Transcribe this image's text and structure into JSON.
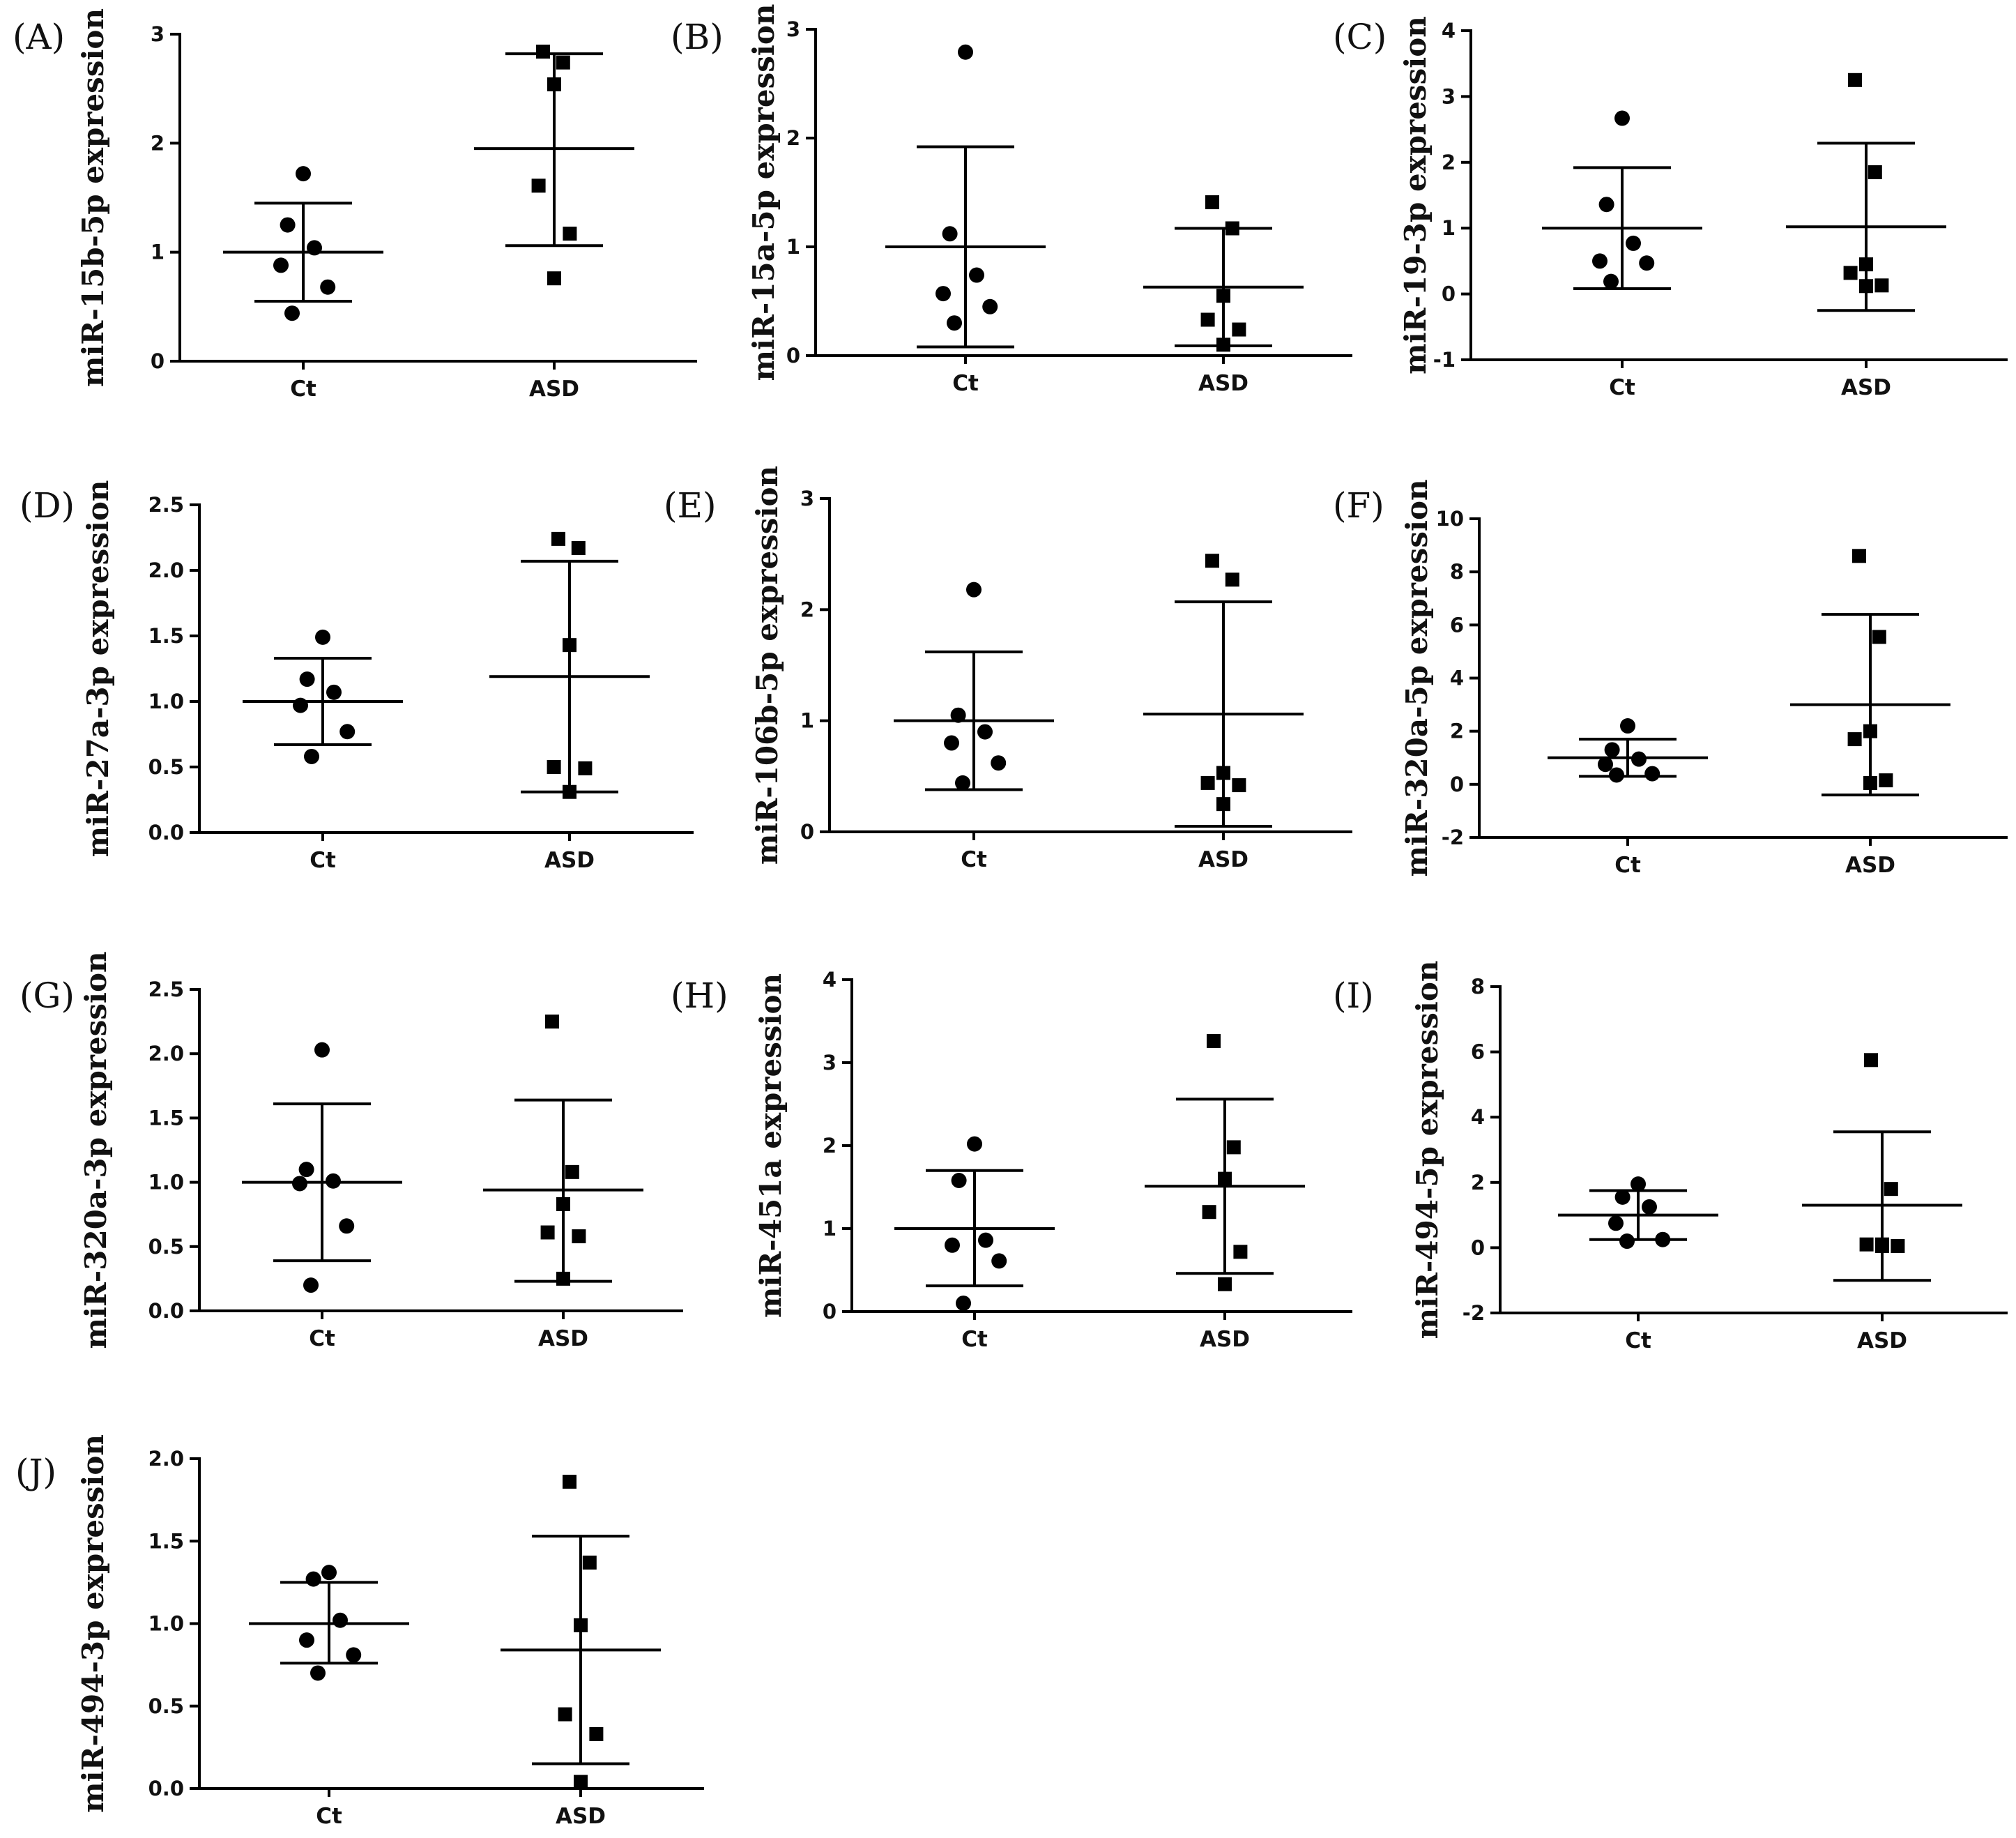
{
  "chart_data": [
    {
      "type": "scatter",
      "panel": "(A)",
      "ylabel": "miR-15b-5p expression",
      "categories": [
        "Ct",
        "ASD"
      ],
      "ylim": [
        0,
        3
      ],
      "yticks": [
        "0",
        "1",
        "2",
        "3"
      ],
      "series": [
        {
          "name": "Ct",
          "marker": "circle",
          "values": [
            1.72,
            1.25,
            1.04,
            0.88,
            0.68,
            0.44
          ],
          "mean": 1.0,
          "upper": 1.45,
          "lower": 0.55
        },
        {
          "name": "ASD",
          "marker": "square",
          "values": [
            2.84,
            2.74,
            2.54,
            1.61,
            1.17,
            0.76
          ],
          "mean": 1.95,
          "upper": 2.82,
          "lower": 1.06
        }
      ]
    },
    {
      "type": "scatter",
      "panel": "(B)",
      "ylabel": "miR-15a-5p expression",
      "categories": [
        "Ct",
        "ASD"
      ],
      "ylim": [
        0,
        3
      ],
      "yticks": [
        "0",
        "1",
        "2",
        "3"
      ],
      "series": [
        {
          "name": "Ct",
          "marker": "circle",
          "values": [
            2.79,
            1.12,
            0.74,
            0.57,
            0.45,
            0.3
          ],
          "mean": 1.0,
          "upper": 1.92,
          "lower": 0.08
        },
        {
          "name": "ASD",
          "marker": "square",
          "values": [
            1.41,
            1.17,
            0.55,
            0.33,
            0.24,
            0.1
          ],
          "mean": 0.63,
          "upper": 1.17,
          "lower": 0.09
        }
      ]
    },
    {
      "type": "scatter",
      "panel": "(C)",
      "ylabel": "miR-19-3p expression",
      "categories": [
        "Ct",
        "ASD"
      ],
      "ylim": [
        -1,
        4
      ],
      "yticks": [
        "-1",
        "0",
        "1",
        "2",
        "3",
        "4"
      ],
      "series": [
        {
          "name": "Ct",
          "marker": "circle",
          "values": [
            2.67,
            1.36,
            0.77,
            0.5,
            0.47,
            0.19
          ],
          "mean": 1.0,
          "upper": 1.92,
          "lower": 0.08
        },
        {
          "name": "ASD",
          "marker": "square",
          "values": [
            3.25,
            1.85,
            0.45,
            0.32,
            0.13,
            0.12
          ],
          "mean": 1.02,
          "upper": 2.29,
          "lower": -0.25
        }
      ]
    },
    {
      "type": "scatter",
      "panel": "(D)",
      "ylabel": "miR-27a-3p expression",
      "categories": [
        "Ct",
        "ASD"
      ],
      "ylim": [
        0,
        2.5
      ],
      "yticks": [
        "0.0",
        "0.5",
        "1.0",
        "1.5",
        "2.0",
        "2.5"
      ],
      "series": [
        {
          "name": "Ct",
          "marker": "circle",
          "values": [
            1.49,
            1.17,
            1.07,
            0.97,
            0.77,
            0.58
          ],
          "mean": 1.0,
          "upper": 1.33,
          "lower": 0.67
        },
        {
          "name": "ASD",
          "marker": "square",
          "values": [
            2.24,
            2.17,
            1.43,
            0.5,
            0.49,
            0.31
          ],
          "mean": 1.19,
          "upper": 2.07,
          "lower": 0.31
        }
      ]
    },
    {
      "type": "scatter",
      "panel": "(E)",
      "ylabel": "miR-106b-5p expression",
      "categories": [
        "Ct",
        "ASD"
      ],
      "ylim": [
        0,
        3
      ],
      "yticks": [
        "0",
        "1",
        "2",
        "3"
      ],
      "series": [
        {
          "name": "Ct",
          "marker": "circle",
          "values": [
            2.18,
            1.05,
            0.9,
            0.8,
            0.62,
            0.44
          ],
          "mean": 1.0,
          "upper": 1.62,
          "lower": 0.38
        },
        {
          "name": "ASD",
          "marker": "square",
          "values": [
            2.44,
            2.27,
            0.53,
            0.44,
            0.42,
            0.25
          ],
          "mean": 1.06,
          "upper": 2.07,
          "lower": 0.05
        }
      ]
    },
    {
      "type": "scatter",
      "panel": "(F)",
      "ylabel": "miR-320a-5p expression",
      "categories": [
        "Ct",
        "ASD"
      ],
      "ylim": [
        -2,
        10
      ],
      "yticks": [
        "-2",
        "0",
        "2",
        "4",
        "6",
        "8",
        "10"
      ],
      "series": [
        {
          "name": "Ct",
          "marker": "circle",
          "values": [
            2.2,
            1.3,
            0.95,
            0.75,
            0.4,
            0.35
          ],
          "mean": 1.0,
          "upper": 1.7,
          "lower": 0.3
        },
        {
          "name": "ASD",
          "marker": "square",
          "values": [
            8.6,
            5.55,
            2.0,
            1.7,
            0.15,
            0.05
          ],
          "mean": 3.0,
          "upper": 6.4,
          "lower": -0.4
        }
      ]
    },
    {
      "type": "scatter",
      "panel": "(G)",
      "ylabel": "miR-320a-3p expression",
      "categories": [
        "Ct",
        "ASD"
      ],
      "ylim": [
        0,
        2.5
      ],
      "yticks": [
        "0.0",
        "0.5",
        "1.0",
        "1.5",
        "2.0",
        "2.5"
      ],
      "series": [
        {
          "name": "Ct",
          "marker": "circle",
          "values": [
            2.03,
            1.1,
            1.01,
            0.99,
            0.66,
            0.2
          ],
          "mean": 1.0,
          "upper": 1.61,
          "lower": 0.39
        },
        {
          "name": "ASD",
          "marker": "square",
          "values": [
            2.25,
            1.08,
            0.83,
            0.61,
            0.58,
            0.25
          ],
          "mean": 0.94,
          "upper": 1.64,
          "lower": 0.23
        }
      ]
    },
    {
      "type": "scatter",
      "panel": "(H)",
      "ylabel": "miR-451a expression",
      "categories": [
        "Ct",
        "ASD"
      ],
      "ylim": [
        0,
        4
      ],
      "yticks": [
        "0",
        "1",
        "2",
        "3",
        "4"
      ],
      "series": [
        {
          "name": "Ct",
          "marker": "circle",
          "values": [
            2.02,
            1.58,
            0.86,
            0.8,
            0.61,
            0.1
          ],
          "mean": 1.0,
          "upper": 1.7,
          "lower": 0.31
        },
        {
          "name": "ASD",
          "marker": "square",
          "values": [
            3.26,
            1.98,
            1.6,
            1.2,
            0.72,
            0.33
          ],
          "mean": 1.51,
          "upper": 2.56,
          "lower": 0.46
        }
      ]
    },
    {
      "type": "scatter",
      "panel": "(I)",
      "ylabel": "miR-494-5p expression",
      "categories": [
        "Ct",
        "ASD"
      ],
      "ylim": [
        -2,
        8
      ],
      "yticks": [
        "-2",
        "0",
        "2",
        "4",
        "6",
        "8"
      ],
      "series": [
        {
          "name": "Ct",
          "marker": "circle",
          "values": [
            1.95,
            1.55,
            1.25,
            0.75,
            0.25,
            0.2
          ],
          "mean": 1.0,
          "upper": 1.75,
          "lower": 0.25
        },
        {
          "name": "ASD",
          "marker": "square",
          "values": [
            5.75,
            1.8,
            0.1,
            0.1,
            0.05,
            0.05
          ],
          "mean": 1.3,
          "upper": 3.55,
          "lower": -1.0
        }
      ]
    },
    {
      "type": "scatter",
      "panel": "(J)",
      "ylabel": "miR-494-3p expression",
      "categories": [
        "Ct",
        "ASD"
      ],
      "ylim": [
        0,
        2.0
      ],
      "yticks": [
        "0.0",
        "0.5",
        "1.0",
        "1.5",
        "2.0"
      ],
      "series": [
        {
          "name": "Ct",
          "marker": "circle",
          "values": [
            1.31,
            1.27,
            1.02,
            0.9,
            0.81,
            0.7
          ],
          "mean": 1.0,
          "upper": 1.25,
          "lower": 0.76
        },
        {
          "name": "ASD",
          "marker": "square",
          "values": [
            1.86,
            1.37,
            0.99,
            0.45,
            0.33,
            0.04
          ],
          "mean": 0.84,
          "upper": 1.53,
          "lower": 0.15
        }
      ]
    }
  ]
}
